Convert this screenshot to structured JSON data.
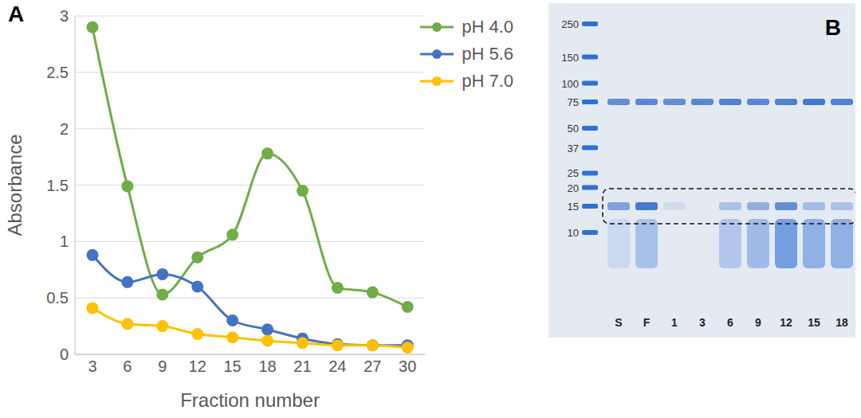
{
  "chart_data": {
    "type": "line",
    "annotations": [
      "A"
    ],
    "x_label": "Fraction number",
    "y_label": "Absorbance",
    "x": [
      3,
      6,
      9,
      12,
      15,
      18,
      21,
      24,
      27,
      30
    ],
    "xlim": [
      1.5,
      31.5
    ],
    "xticks": [
      3,
      6,
      9,
      12,
      15,
      18,
      21,
      24,
      27,
      30
    ],
    "ylim": [
      0,
      3
    ],
    "yticks": [
      0,
      0.5,
      1,
      1.5,
      2,
      2.5,
      3
    ],
    "grid": true,
    "legend": "upper right",
    "series": [
      {
        "name": "pH 4.0",
        "color": "#70ad47",
        "marker": "circle",
        "line_style": "solid",
        "values": [
          2.9,
          1.49,
          0.53,
          0.86,
          1.06,
          1.78,
          1.45,
          0.59,
          0.55,
          0.42
        ]
      },
      {
        "name": "pH 5.6",
        "color": "#4472c4",
        "marker": "circle",
        "line_style": "solid",
        "values": [
          0.88,
          0.64,
          0.71,
          0.6,
          0.3,
          0.22,
          0.14,
          0.09,
          0.08,
          0.08
        ]
      },
      {
        "name": "pH 7.0",
        "color": "#ffc000",
        "marker": "circle",
        "line_style": "solid",
        "values": [
          0.41,
          0.27,
          0.25,
          0.18,
          0.15,
          0.12,
          0.1,
          0.08,
          0.08,
          0.06
        ]
      }
    ]
  },
  "gel": {
    "label": "B",
    "ladder_kda": [
      250,
      150,
      100,
      75,
      50,
      37,
      25,
      20,
      15,
      10
    ],
    "lanes": [
      "S",
      "F",
      "1",
      "3",
      "6",
      "9",
      "12",
      "15",
      "18"
    ]
  }
}
